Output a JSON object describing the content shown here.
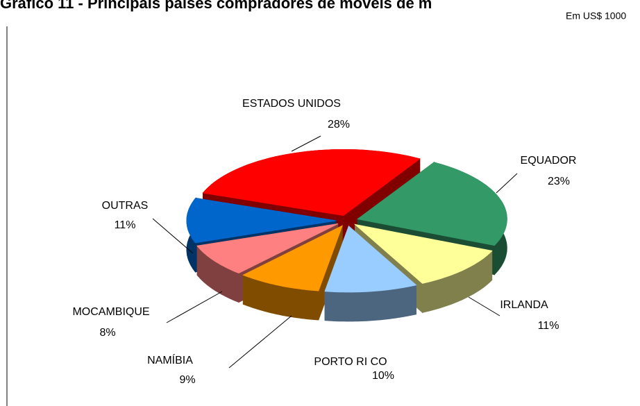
{
  "chart_data": {
    "type": "pie",
    "title": "Gráfico 11 - Principais países compradores de móveis de m",
    "subtitle": "Em US$ 1000",
    "categories": [
      "ESTADOS UNIDOS",
      "EQUADOR",
      "IRLANDA",
      "PORTO RI CO",
      "NAMÍBIA",
      "MOCAMBIQUE",
      "OUTRAS"
    ],
    "values": [
      28,
      23,
      11,
      10,
      9,
      8,
      11
    ],
    "value_labels": [
      "28%",
      "23%",
      "11%",
      "10%",
      "9%",
      "8%",
      "11%"
    ],
    "colors": [
      "#ff0000",
      "#339966",
      "#ffff99",
      "#99ccff",
      "#ff9900",
      "#ff8080",
      "#0066cc"
    ]
  }
}
